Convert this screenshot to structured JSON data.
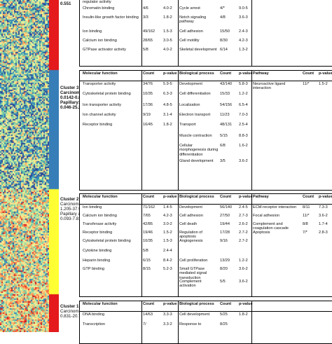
{
  "heatmap": {
    "colors": [
      "#d7191c",
      "#f46d43",
      "#fdae61",
      "#fee08b",
      "#e6f598",
      "#abdda4",
      "#66c2a5",
      "#3288bd",
      "#2b4b9b"
    ],
    "sidebar_colors": [
      "#e41a1c",
      "#377eb8",
      "#4daf4a",
      "#ffff33",
      "#ff7f00"
    ]
  },
  "top_label": {
    "value": "0.551"
  },
  "clusters": [
    {
      "id": "cluster4-partial",
      "name": "",
      "rows": [
        [
          "regulator activity",
          "",
          "",
          "",
          "",
          "",
          "",
          "",
          ""
        ],
        [
          "Chromatin binding",
          "4/6",
          "4.0-2",
          "Cycle arrest",
          "4/*",
          "9.0-5",
          "",
          "",
          ""
        ],
        [
          "Insulin-like growth factor binding",
          "3/3",
          "1.8-2",
          "Notch signaling pathway",
          "4/8",
          "3.6-3",
          "",
          "",
          ""
        ],
        [
          "Ion binding",
          "49/162",
          "1.5-3",
          "Cell adhesion",
          "15/50",
          "2.4-3",
          "",
          "",
          ""
        ],
        [
          "Calcium ion binding",
          "28/65",
          "3.0-5",
          "Cell motility",
          "8/30",
          "4.2-3",
          "",
          "",
          ""
        ],
        [
          "GTPase activator activity",
          "5/8",
          "4.0-2",
          "Skeletal development",
          "6/14",
          "1.3-2",
          "",
          "",
          ""
        ]
      ]
    },
    {
      "id": "cluster3",
      "name": "Cluster 3",
      "carcinoma": "Carcinoma:",
      "carcinoma_val": "0.0142-0.89",
      "papillary": "Papillary:",
      "papillary_val": "0.046-25.27",
      "headers": [
        "Molecular function",
        "Count",
        "p-value",
        "Biological process",
        "Count",
        "p-value",
        "Pathway",
        "Count",
        "p-value"
      ],
      "rows": [
        [
          "Transporter activity",
          "34/76",
          "5.9-5",
          "Development",
          "43/140",
          "5.8-3",
          "Neuroactive ligand interaction",
          "11/*",
          "1.5-2"
        ],
        [
          "Cytoskeletal protein binding",
          "10/35",
          "6.3-3",
          "Cell differentiation",
          "15/33",
          "1.2-2",
          "",
          "",
          ""
        ],
        [
          "Ion transporter activity",
          "17/36",
          "4.8-5",
          "Localization",
          "54/156",
          "6.5-4",
          "",
          "",
          ""
        ],
        [
          "Ion channel activity",
          "9/19",
          "3.1-4",
          "Electron transport",
          "11/23",
          "7.0-3",
          "",
          "",
          ""
        ],
        [
          "Receptor binding",
          "16/45",
          "1.8-2",
          "Transport",
          "48/131",
          "2.5-4",
          "",
          "",
          ""
        ],
        [
          "",
          "",
          "",
          "Muscle contraction",
          "5/15",
          "8.8-3",
          "",
          "",
          ""
        ],
        [
          "",
          "",
          "",
          "Cellular morphogenesis during differentiation",
          "6/8",
          "1.6-2",
          "",
          "",
          ""
        ],
        [
          "",
          "",
          "",
          "Gland development",
          "3/5",
          "3.6-2",
          "",
          "",
          ""
        ]
      ]
    },
    {
      "id": "cluster2",
      "name": "Cluster 2",
      "carcinoma": "Carcinoma :",
      "carcinoma_val": "1.205-37.93",
      "papillary": "Papillary ad.:",
      "papillary_val": "0.093-7.819",
      "headers": [
        "Molecular function",
        "Count",
        "p-value",
        "Biological process",
        "Count",
        "p-value",
        "Pathway",
        "Count",
        "p-value"
      ],
      "rows": [
        [
          "Ion binding",
          "71/162",
          "1.4-5",
          "Development",
          "56/140",
          "2.4-5",
          "ECM-receptor interaction",
          "8/11",
          "7.3-3"
        ],
        [
          "Calcium ion binding",
          "7/65",
          "4.2-3",
          "Cell adhesion",
          "27/50",
          "2.7-3",
          "Focal adhesion",
          "11/*",
          "3.6-2"
        ],
        [
          "Transferase activity",
          "42/85",
          "3.0-2",
          "Cell death",
          "19/44",
          "2.6-2",
          "Complement and coagulation cascade",
          "8/8",
          "1.7-4"
        ],
        [
          "Receptor binding",
          "19/46",
          "1.5-2",
          "Regulation of apoptosis",
          "17/28",
          "2.7-2",
          "Apoptosis",
          "7/*",
          "2.8-3"
        ],
        [
          "Cytoskeletal protein binding",
          "10/35",
          "1.5-3",
          "Angiogenesis",
          "9/16",
          "2.7-2",
          "",
          "",
          ""
        ],
        [
          "Cytokine binding",
          "5/8",
          "2.4-4",
          "",
          "",
          "",
          "",
          "",
          ""
        ],
        [
          "Heparin binding",
          "6/15",
          "8.4-2",
          "Cell proliferation",
          "13/29",
          "1.2-2",
          "",
          "",
          ""
        ],
        [
          "GTP binding",
          "8/15",
          "5.2-3",
          "Small GTPase mediated signal transduction",
          "8/20",
          "3.6-2",
          "",
          "",
          ""
        ],
        [
          "",
          "",
          "",
          "Complement activation",
          "5/5",
          "3.6-2",
          "",
          "",
          ""
        ]
      ]
    },
    {
      "id": "cluster1",
      "name": "Cluster 1",
      "carcinoma": "Carcinoma:",
      "carcinoma_val": "0.831-20.71",
      "papillary": "",
      "papillary_val": "",
      "headers": [
        "Molecular function",
        "Count",
        "p-value",
        "Biological process",
        "Count",
        "p-value",
        "",
        "",
        ""
      ],
      "rows": [
        [
          "DNA binding",
          "14/63",
          "3.3-3",
          "Cell development",
          "5/25",
          "1.8-2",
          "",
          "",
          ""
        ],
        [
          "Transcription",
          "7/",
          "3.3-2",
          "Response to",
          "8/25",
          "",
          "",
          "",
          ""
        ]
      ]
    }
  ]
}
